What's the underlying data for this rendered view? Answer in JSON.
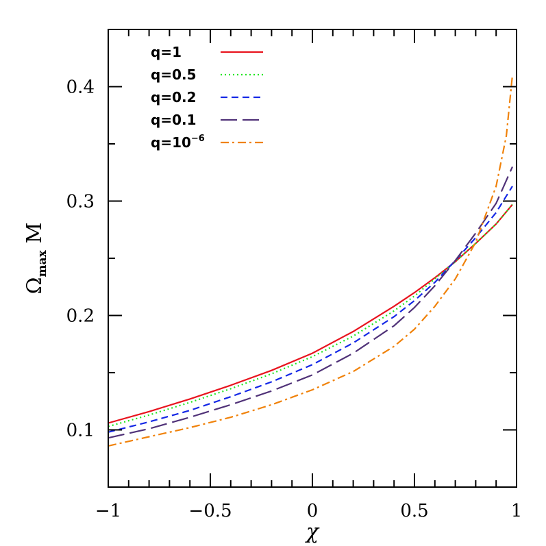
{
  "chart_data": {
    "type": "line",
    "xlabel": "χ",
    "ylabel_main": "Ω",
    "ylabel_sub": "max",
    "ylabel_tail": "M",
    "xlim": [
      -1,
      1
    ],
    "ylim": [
      0.05,
      0.45
    ],
    "x_ticks": [
      -1,
      -0.5,
      0,
      0.5,
      1
    ],
    "x_tick_labels": [
      "−1",
      "−0.5",
      "0",
      "0.5",
      "1"
    ],
    "y_ticks": [
      0.1,
      0.2,
      0.3,
      0.4
    ],
    "y_tick_labels": [
      "0.1",
      "0.2",
      "0.3",
      "0.4"
    ],
    "legend_placement": "top-left",
    "series": [
      {
        "name": "q=1",
        "name_base": "q=1",
        "name_sup": "",
        "color": "#e8141e",
        "dash": "",
        "x": [
          -1,
          -0.8,
          -0.6,
          -0.4,
          -0.2,
          0,
          0.2,
          0.4,
          0.5,
          0.6,
          0.7,
          0.8,
          0.9,
          0.98
        ],
        "y": [
          0.106,
          0.116,
          0.127,
          0.139,
          0.152,
          0.167,
          0.186,
          0.208,
          0.22,
          0.233,
          0.247,
          0.263,
          0.28,
          0.297
        ]
      },
      {
        "name": "q=0.5",
        "name_base": "q=0.5",
        "name_sup": "",
        "color": "#1ee61e",
        "dash": "2,4",
        "x": [
          -1,
          -0.8,
          -0.6,
          -0.4,
          -0.2,
          0,
          0.2,
          0.4,
          0.5,
          0.6,
          0.7,
          0.8,
          0.9,
          0.98
        ],
        "y": [
          0.103,
          0.113,
          0.124,
          0.136,
          0.149,
          0.164,
          0.182,
          0.204,
          0.217,
          0.232,
          0.247,
          0.263,
          0.28,
          0.297
        ]
      },
      {
        "name": "q=0.2",
        "name_base": "q=0.2",
        "name_sup": "",
        "color": "#1428e6",
        "dash": "10,6",
        "x": [
          -1,
          -0.8,
          -0.6,
          -0.4,
          -0.2,
          0,
          0.2,
          0.4,
          0.5,
          0.6,
          0.7,
          0.8,
          0.9,
          0.98
        ],
        "y": [
          0.098,
          0.107,
          0.117,
          0.129,
          0.142,
          0.157,
          0.176,
          0.199,
          0.213,
          0.229,
          0.248,
          0.268,
          0.29,
          0.313
        ]
      },
      {
        "name": "q=0.1",
        "name_base": "q=0.1",
        "name_sup": "",
        "color": "#503278",
        "dash": "24,8",
        "x": [
          -1,
          -0.8,
          -0.6,
          -0.4,
          -0.2,
          0,
          0.2,
          0.4,
          0.5,
          0.6,
          0.7,
          0.8,
          0.9,
          0.98
        ],
        "y": [
          0.093,
          0.101,
          0.111,
          0.122,
          0.134,
          0.148,
          0.167,
          0.191,
          0.207,
          0.226,
          0.248,
          0.272,
          0.298,
          0.33
        ]
      },
      {
        "name": "q=10⁻⁶",
        "name_base": "q=10",
        "name_sup": "−6",
        "color": "#f0820a",
        "dash": "12,5,3,5",
        "x": [
          -1,
          -0.8,
          -0.6,
          -0.4,
          -0.2,
          0,
          0.2,
          0.4,
          0.5,
          0.6,
          0.7,
          0.8,
          0.9,
          0.95,
          0.98
        ],
        "y": [
          0.086,
          0.094,
          0.102,
          0.111,
          0.122,
          0.135,
          0.151,
          0.173,
          0.188,
          0.208,
          0.232,
          0.264,
          0.313,
          0.357,
          0.41
        ]
      }
    ]
  }
}
